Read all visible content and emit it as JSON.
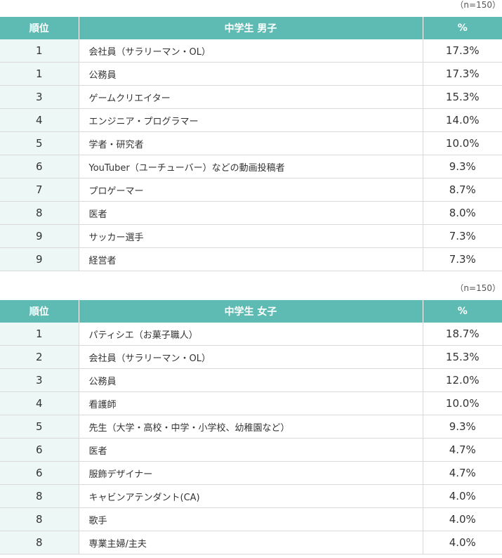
{
  "tables": [
    {
      "sample_note": "（n=150）",
      "headers": {
        "rank": "順位",
        "group": "中学生 男子",
        "pct": "%"
      },
      "rows": [
        {
          "rank": "1",
          "job": "会社員（サラリーマン・OL）",
          "pct": "17.3%"
        },
        {
          "rank": "1",
          "job": "公務員",
          "pct": "17.3%"
        },
        {
          "rank": "3",
          "job": "ゲームクリエイター",
          "pct": "15.3%"
        },
        {
          "rank": "4",
          "job": "エンジニア・プログラマー",
          "pct": "14.0%"
        },
        {
          "rank": "5",
          "job": "学者・研究者",
          "pct": "10.0%"
        },
        {
          "rank": "6",
          "job": "YouTuber（ユーチューバー）などの動画投稿者",
          "pct": "9.3%"
        },
        {
          "rank": "7",
          "job": "プロゲーマー",
          "pct": "8.7%"
        },
        {
          "rank": "8",
          "job": "医者",
          "pct": "8.0%"
        },
        {
          "rank": "9",
          "job": "サッカー選手",
          "pct": "7.3%"
        },
        {
          "rank": "9",
          "job": "経営者",
          "pct": "7.3%"
        }
      ]
    },
    {
      "sample_note": "（n=150）",
      "headers": {
        "rank": "順位",
        "group": "中学生 女子",
        "pct": "%"
      },
      "rows": [
        {
          "rank": "1",
          "job": "パティシエ（お菓子職人）",
          "pct": "18.7%"
        },
        {
          "rank": "2",
          "job": "会社員（サラリーマン・OL）",
          "pct": "15.3%"
        },
        {
          "rank": "3",
          "job": "公務員",
          "pct": "12.0%"
        },
        {
          "rank": "4",
          "job": "看護師",
          "pct": "10.0%"
        },
        {
          "rank": "5",
          "job": "先生（大学・高校・中学・小学校、幼稚園など）",
          "pct": "9.3%"
        },
        {
          "rank": "6",
          "job": "医者",
          "pct": "4.7%"
        },
        {
          "rank": "6",
          "job": "服飾デザイナー",
          "pct": "4.7%"
        },
        {
          "rank": "8",
          "job": "キャビンアテンダント(CA)",
          "pct": "4.0%"
        },
        {
          "rank": "8",
          "job": "歌手",
          "pct": "4.0%"
        },
        {
          "rank": "8",
          "job": "専業主婦/主夫",
          "pct": "4.0%"
        }
      ]
    }
  ],
  "colors": {
    "header_bg": "#5ebbb3",
    "rank_bg": "#edf7f6",
    "border": "#d9d9d9"
  }
}
